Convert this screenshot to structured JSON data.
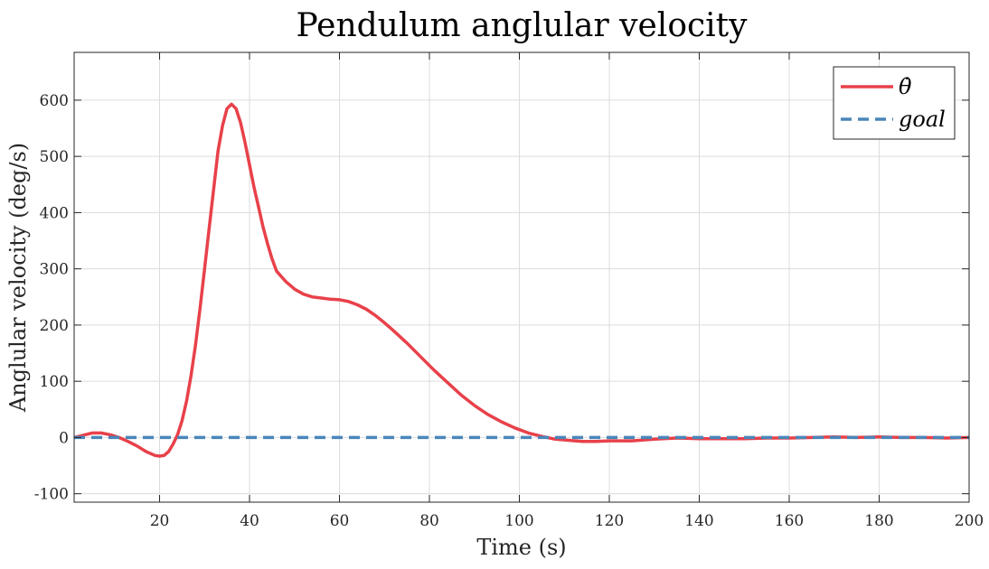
{
  "chart_data": {
    "type": "line",
    "title": "Pendulum anglular velocity",
    "xlabel": "Time (s)",
    "ylabel": "Anglular velocity (deg/s)",
    "xlim": [
      1,
      200
    ],
    "ylim": [
      -115,
      685
    ],
    "xticks": [
      20,
      40,
      60,
      80,
      100,
      120,
      140,
      160,
      180,
      200
    ],
    "yticks": [
      -100,
      0,
      100,
      200,
      300,
      400,
      500,
      600
    ],
    "grid": true,
    "legend_position": "top-right",
    "series": [
      {
        "name": "θ̇",
        "color": "#e8414a",
        "style": "solid",
        "x": [
          1,
          3,
          5,
          7,
          9,
          11,
          13,
          15,
          17,
          19,
          20,
          21,
          22,
          23,
          24,
          25,
          26,
          27,
          28,
          29,
          30,
          31,
          32,
          33,
          34,
          35,
          36,
          37,
          38,
          39,
          40,
          41,
          42,
          43,
          44,
          45,
          46,
          48,
          50,
          52,
          54,
          56,
          58,
          60,
          62,
          64,
          66,
          68,
          70,
          72,
          75,
          78,
          81,
          84,
          87,
          90,
          93,
          96,
          99,
          102,
          105,
          108,
          111,
          114,
          117,
          120,
          125,
          130,
          135,
          140,
          145,
          150,
          155,
          160,
          165,
          170,
          175,
          180,
          185,
          190,
          195,
          200
        ],
        "y": [
          0,
          4,
          8,
          8,
          5,
          0,
          -7,
          -15,
          -25,
          -32,
          -33,
          -32,
          -25,
          -12,
          5,
          30,
          65,
          110,
          165,
          230,
          300,
          370,
          440,
          510,
          555,
          585,
          593,
          585,
          560,
          525,
          485,
          445,
          410,
          375,
          345,
          318,
          296,
          278,
          264,
          255,
          250,
          248,
          246,
          245,
          242,
          236,
          228,
          217,
          204,
          190,
          168,
          144,
          120,
          98,
          76,
          57,
          41,
          28,
          17,
          8,
          2,
          -3,
          -5,
          -7,
          -7,
          -6,
          -6,
          -3,
          -1,
          -2,
          -2,
          -2,
          -1,
          -1,
          0,
          1,
          0,
          1,
          0,
          0,
          -1,
          0
        ]
      },
      {
        "name": "goal",
        "color": "#4a86ba",
        "style": "dashed",
        "x": [
          1,
          200
        ],
        "y": [
          0,
          0
        ]
      }
    ]
  }
}
